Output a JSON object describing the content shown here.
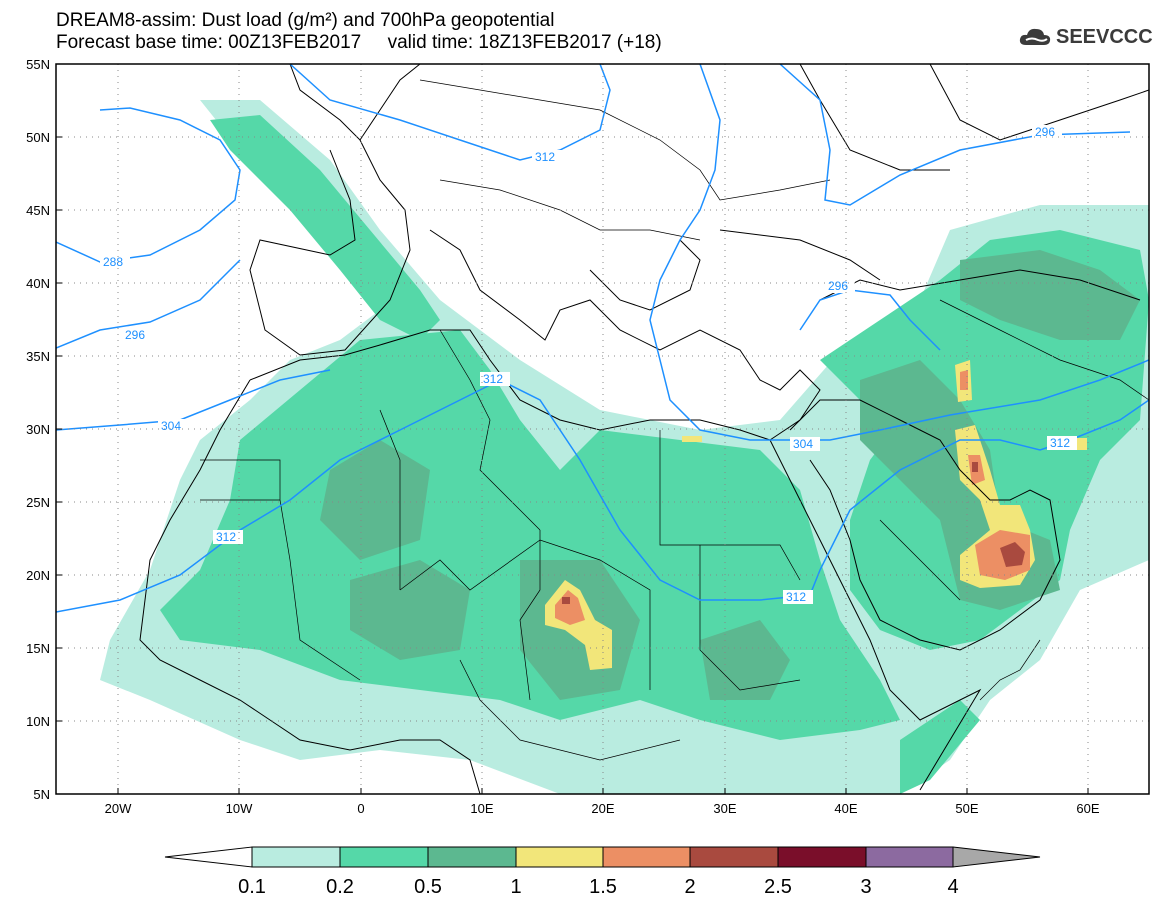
{
  "title": {
    "line1": "DREAM8-assim: Dust load (g/m²) and 700hPa geopotential",
    "line2": "Forecast base time: 00Z13FEB2017     valid time: 18Z13FEB2017 (+18)"
  },
  "logo": {
    "text": "SEEVCCC",
    "icon": "cloud-icon"
  },
  "axes": {
    "lon_range": [
      -25,
      65
    ],
    "lat_range": [
      5,
      55
    ],
    "lat_ticks": [
      "55N",
      "50N",
      "45N",
      "40N",
      "35N",
      "30N",
      "25N",
      "20N",
      "15N",
      "10N",
      "5N"
    ],
    "lon_ticks": [
      "20W",
      "10W",
      "0",
      "10E",
      "20E",
      "30E",
      "40E",
      "50E",
      "60E"
    ],
    "grid": "dotted"
  },
  "contours": {
    "levels": [
      "288",
      "296",
      "304",
      "312",
      "312",
      "296",
      "304",
      "312",
      "296",
      "312",
      "312"
    ],
    "color": "#1e90ff"
  },
  "colorbar": {
    "ticks": [
      "0.1",
      "0.2",
      "0.5",
      "1",
      "1.5",
      "2",
      "2.5",
      "3",
      "4"
    ],
    "colors": [
      "#b9ece0",
      "#55d8a8",
      "#5cb890",
      "#f2e67a",
      "#ec8f64",
      "#a94a3f",
      "#7a0e2a",
      "#8c6aa0",
      "#a8a8a8"
    ]
  }
}
